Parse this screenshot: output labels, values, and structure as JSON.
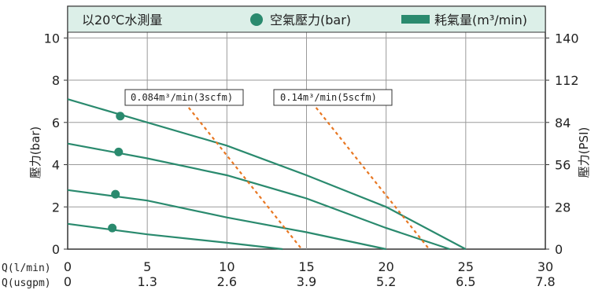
{
  "chart_data": {
    "type": "line",
    "legend": {
      "condition": "以20℃水測量",
      "pressure_label": "空氣壓力(bar)",
      "consumption_label": "耗氣量(m³/min)"
    },
    "colors": {
      "line": "#2a8a6e",
      "dot": "#2a8a6e",
      "guide": "#e87722",
      "grid": "#9a9a9a",
      "legend_bg": "#dcefe8"
    },
    "ylabel_left": "壓力(bar)",
    "ylabel_right": "壓力(PSI)",
    "x_row1_label": "Q(l/min)",
    "x_row2_label": "Q(usgpm)",
    "xlim": [
      0,
      30
    ],
    "ylim": [
      0,
      11.5
    ],
    "x_ticks": [
      0,
      5,
      10,
      15,
      20,
      25,
      30
    ],
    "x_ticks_usgpm": [
      "0",
      "1.3",
      "2.6",
      "3.9",
      "5.2",
      "6.5",
      "7.8"
    ],
    "y_ticks": [
      0,
      2,
      4,
      6,
      8,
      10
    ],
    "y_ticks_psi": [
      "0",
      "28",
      "56",
      "84",
      "112",
      "140"
    ],
    "series": [
      {
        "x": [
          0,
          5,
          10,
          15,
          20,
          25
        ],
        "y": [
          7.1,
          6.0,
          4.9,
          3.5,
          2.0,
          0
        ]
      },
      {
        "x": [
          0,
          5,
          10,
          15,
          20,
          24
        ],
        "y": [
          5.0,
          4.3,
          3.5,
          2.4,
          1.0,
          0
        ]
      },
      {
        "x": [
          0,
          5,
          10,
          15,
          20
        ],
        "y": [
          2.8,
          2.3,
          1.5,
          0.8,
          0
        ]
      },
      {
        "x": [
          0,
          5,
          10,
          13.5
        ],
        "y": [
          1.2,
          0.7,
          0.3,
          0
        ]
      }
    ],
    "pressure_points": [
      {
        "x": 3.3,
        "y": 6.3
      },
      {
        "x": 3.2,
        "y": 4.6
      },
      {
        "x": 3.0,
        "y": 2.6
      },
      {
        "x": 2.8,
        "y": 1.0
      }
    ],
    "consumption_lines": [
      {
        "label": "0.084m³/min(3scfm)",
        "x": [
          7.6,
          14.7
        ],
        "y": [
          6.7,
          0
        ]
      },
      {
        "label": "0.14m³/min(5scfm)",
        "x": [
          15.6,
          22.7
        ],
        "y": [
          6.7,
          0
        ]
      }
    ]
  }
}
